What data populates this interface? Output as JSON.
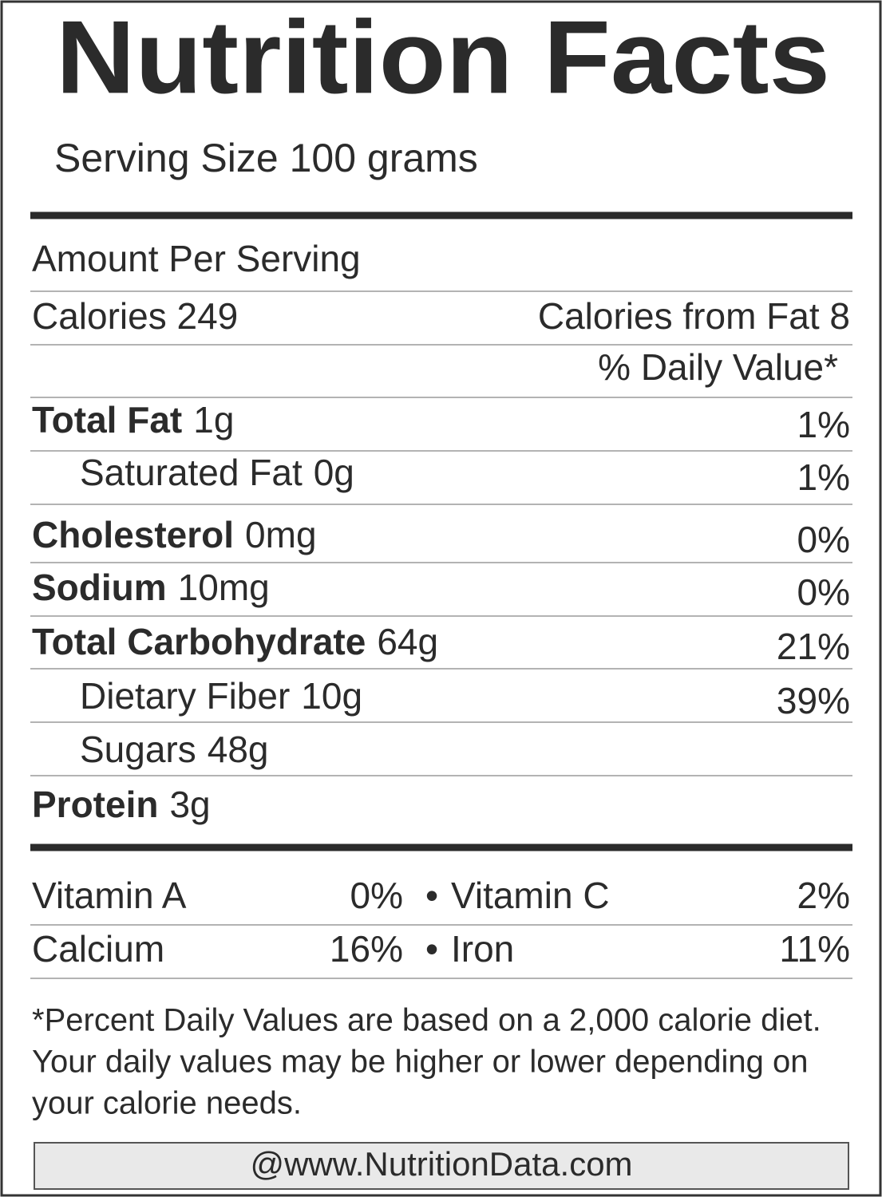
{
  "title": "Nutrition Facts",
  "serving_size": "Serving Size 100 grams",
  "amount_per_serving": "Amount Per Serving",
  "calories": "Calories 249",
  "calories_from_fat": "Calories from Fat 8",
  "daily_value_header": "% Daily Value*",
  "nutrients": [
    {
      "name": "Total Fat",
      "amount": "1g",
      "dv": "1%",
      "bold": true,
      "indent": false
    },
    {
      "name": "Saturated Fat",
      "amount": "0g",
      "dv": "1%",
      "bold": false,
      "indent": true
    },
    {
      "name": "Cholesterol",
      "amount": "0mg",
      "dv": "0%",
      "bold": true,
      "indent": false
    },
    {
      "name": "Sodium",
      "amount": "10mg",
      "dv": "0%",
      "bold": true,
      "indent": false
    },
    {
      "name": "Total Carbohydrate",
      "amount": "64g",
      "dv": "21%",
      "bold": true,
      "indent": false
    },
    {
      "name": "Dietary Fiber",
      "amount": "10g",
      "dv": "39%",
      "bold": false,
      "indent": true
    },
    {
      "name": "Sugars",
      "amount": "48g",
      "bold": false,
      "indent": true
    },
    {
      "name": "Protein",
      "amount": "3g",
      "bold": true,
      "indent": false
    }
  ],
  "vitamins": {
    "separator": "•",
    "rows": [
      [
        {
          "name": "Vitamin A",
          "dv": "0%"
        },
        {
          "name": "Vitamin C",
          "dv": "2%"
        }
      ],
      [
        {
          "name": "Calcium",
          "dv": "16%"
        },
        {
          "name": "Iron",
          "dv": "11%"
        }
      ]
    ]
  },
  "footnote": [
    "*Percent Daily Values are based on a 2,000 calorie diet.",
    "Your daily values may be higher or lower depending on",
    "your calorie needs."
  ],
  "source": "@www.NutritionData.com"
}
